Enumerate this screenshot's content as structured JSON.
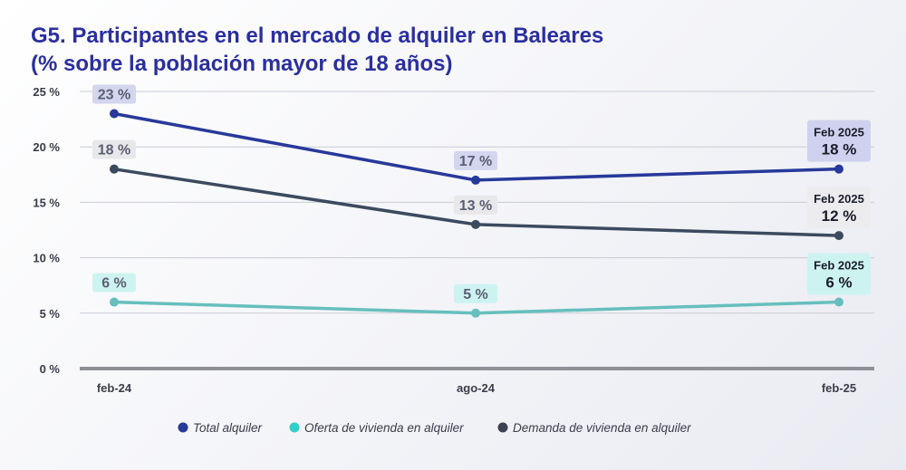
{
  "title": {
    "line1": "G5. Participantes en el mercado de alquiler en Baleares",
    "line2": "(% sobre la población mayor de 18 años)"
  },
  "chart_data": {
    "type": "line",
    "categories": [
      "feb-24",
      "ago-24",
      "feb-25"
    ],
    "ylim": [
      0,
      25
    ],
    "yticks": [
      0,
      5,
      10,
      15,
      20,
      25
    ],
    "ytick_labels": [
      "0 %",
      "5 %",
      "10 %",
      "15 %",
      "20 %",
      "25 %"
    ],
    "grid": true,
    "legend_position": "bottom-center",
    "series": [
      {
        "name": "Total alquiler",
        "values": [
          23,
          17,
          18
        ],
        "labels": [
          "23 %",
          "17 %",
          "18 %"
        ],
        "color": "#27399a",
        "label_bg": "#d4d5ee",
        "label_color": "#5b5f72",
        "end_label_prefix": "Feb 2025",
        "end_label_bg": "#cfd1ee",
        "end_label_color": "#1b1d2a"
      },
      {
        "name": "Oferta de vivienda en alquiler",
        "values": [
          6,
          5,
          6
        ],
        "labels": [
          "6 %",
          "5 %",
          "6 %"
        ],
        "color": "#66bfbd",
        "label_bg": "#cdf3f1",
        "label_color": "#5b5f72",
        "end_label_prefix": "Feb 2025",
        "end_label_bg": "#cdf3f1",
        "end_label_color": "#1b1d2a"
      },
      {
        "name": "Demanda de vivienda en alquiler",
        "values": [
          18,
          13,
          12
        ],
        "labels": [
          "18 %",
          "13 %",
          "12 %"
        ],
        "color": "#3c4a5f",
        "label_bg": "#e8e8ea",
        "label_color": "#5b5f72",
        "end_label_prefix": "Feb 2025",
        "end_label_bg": "#ececef",
        "end_label_color": "#1b1d2a"
      }
    ],
    "legend_marker_colors": [
      "#27399a",
      "#2ed1c8",
      "#3c4250"
    ]
  }
}
